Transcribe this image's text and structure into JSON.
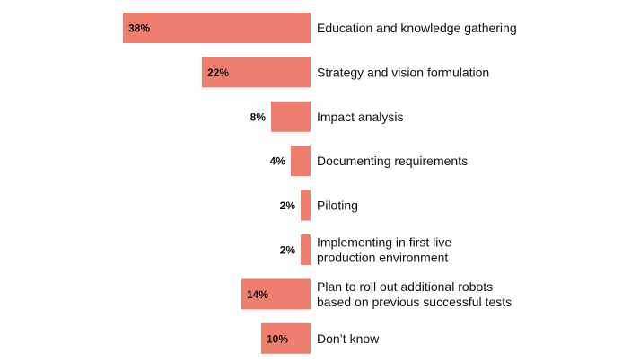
{
  "chart_data": {
    "type": "bar",
    "orientation": "horizontal",
    "bar_color": "#F07E6E",
    "categories": [
      [
        "Education and knowledge gathering"
      ],
      [
        "Strategy and vision formulation"
      ],
      [
        "Impact analysis"
      ],
      [
        "Documenting requirements"
      ],
      [
        "Piloting"
      ],
      [
        "Implementing in first live",
        "production environment"
      ],
      [
        "Plan to roll out additional robots",
        "based on previous successful tests"
      ],
      [
        "Don’t know"
      ]
    ],
    "values": [
      38,
      22,
      8,
      4,
      2,
      2,
      14,
      10
    ],
    "value_labels": [
      "38%",
      "22%",
      "8%",
      "4%",
      "2%",
      "2%",
      "14%",
      "10%"
    ],
    "title": "",
    "xlabel": "",
    "ylabel": ""
  }
}
